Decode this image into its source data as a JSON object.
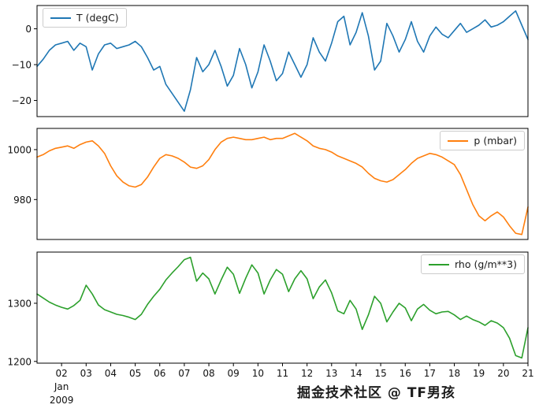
{
  "figure": {
    "background": "#ffffff",
    "watermark": "掘金技术社区 @ TF男孩"
  },
  "axis": {
    "xlim": [
      1,
      21
    ],
    "xtick_values": [
      2,
      3,
      4,
      5,
      6,
      7,
      8,
      9,
      10,
      11,
      12,
      13,
      14,
      15,
      16,
      17,
      18,
      19,
      20,
      21
    ],
    "xtick_labels": [
      "02",
      "03",
      "04",
      "05",
      "06",
      "07",
      "08",
      "09",
      "10",
      "11",
      "12",
      "13",
      "14",
      "15",
      "16",
      "17",
      "18",
      "19",
      "20",
      "21"
    ],
    "x_first_label_lines": [
      "Jan",
      "2009"
    ],
    "tick_color": "#000000",
    "grid": "off"
  },
  "chart_data": [
    {
      "type": "line",
      "series_name": "T (degC)",
      "legend": "T (degC)",
      "color": "#1f77b4",
      "legend_pos": "upper-left",
      "ylim": [
        -24.5,
        6.5
      ],
      "ytick_values": [
        0,
        -10,
        -20
      ],
      "ytick_labels": [
        "0",
        "−10",
        "−20"
      ],
      "x_start": 1.0,
      "x_step": 0.25,
      "x_unit": "day of Jan 2009",
      "y": [
        -10.5,
        -8.5,
        -6,
        -4.5,
        -4,
        -3.5,
        -6,
        -4,
        -5,
        -11.5,
        -7,
        -4.5,
        -4,
        -5.5,
        -5,
        -4.5,
        -3.5,
        -5,
        -8,
        -11.5,
        -10.5,
        -15.5,
        -18,
        -20.5,
        -23,
        -17,
        -8,
        -12,
        -10,
        -6,
        -10.5,
        -16,
        -13,
        -5.5,
        -10,
        -16.5,
        -12,
        -4.5,
        -9,
        -14.5,
        -12.5,
        -6.5,
        -10,
        -13.5,
        -10,
        -2.5,
        -6.5,
        -9,
        -4,
        2,
        3.5,
        -4.5,
        -1,
        4.5,
        -2,
        -11.5,
        -9,
        1.5,
        -2,
        -6.5,
        -3,
        2,
        -3.5,
        -6.5,
        -2,
        0.5,
        -1.5,
        -2.5,
        -0.5,
        1.5,
        -1,
        0,
        1,
        2.5,
        0.5,
        1,
        2,
        3.5,
        5,
        1,
        -3
      ]
    },
    {
      "type": "line",
      "series_name": "p (mbar)",
      "legend": "p (mbar)",
      "color": "#ff7f0e",
      "legend_pos": "upper-right",
      "ylim": [
        964,
        1008.5
      ],
      "ytick_values": [
        1000,
        980
      ],
      "ytick_labels": [
        "1000",
        "980"
      ],
      "x_start": 1.0,
      "x_step": 0.25,
      "x_unit": "day of Jan 2009",
      "y": [
        997,
        998,
        999.5,
        1000.5,
        1001,
        1001.5,
        1000.5,
        1002,
        1003,
        1003.5,
        1001.5,
        998.5,
        993.5,
        989.5,
        987,
        985.5,
        985,
        986,
        989,
        993,
        996.5,
        998,
        997.5,
        996.5,
        995,
        993,
        992.5,
        993.5,
        996,
        1000,
        1003,
        1004.5,
        1005,
        1004.5,
        1004,
        1004,
        1004.5,
        1005,
        1004,
        1004.5,
        1004.5,
        1005.5,
        1006.5,
        1005,
        1003.5,
        1001.5,
        1000.5,
        1000,
        999,
        997.5,
        996.5,
        995.5,
        994.5,
        993,
        990.5,
        988.5,
        987.5,
        987,
        988,
        990,
        992,
        994.5,
        996.5,
        997.5,
        998.5,
        998,
        997,
        995.5,
        994,
        990,
        984,
        978,
        973.5,
        971.5,
        973.5,
        975,
        973,
        969.5,
        966.5,
        966,
        977
      ]
    },
    {
      "type": "line",
      "series_name": "rho (g/m**3)",
      "legend": "rho (g/m**3)",
      "color": "#2ca02c",
      "legend_pos": "upper-right",
      "ylim": [
        1197,
        1388
      ],
      "ytick_values": [
        1300,
        1200
      ],
      "ytick_labels": [
        "1300",
        "1200"
      ],
      "x_start": 1.0,
      "x_step": 0.25,
      "x_unit": "day of Jan 2009",
      "y": [
        1316,
        1309,
        1302,
        1297,
        1293,
        1290,
        1296,
        1305,
        1331,
        1316,
        1297,
        1289,
        1285,
        1281,
        1279,
        1276,
        1272,
        1281,
        1298,
        1312,
        1324,
        1340,
        1352,
        1363,
        1375,
        1379,
        1338,
        1352,
        1342,
        1316,
        1340,
        1362,
        1350,
        1317,
        1343,
        1366,
        1352,
        1316,
        1340,
        1358,
        1350,
        1320,
        1342,
        1356,
        1342,
        1308,
        1328,
        1340,
        1318,
        1287,
        1282,
        1305,
        1290,
        1255,
        1280,
        1312,
        1300,
        1268,
        1285,
        1300,
        1292,
        1270,
        1290,
        1298,
        1288,
        1282,
        1285,
        1286,
        1280,
        1272,
        1278,
        1272,
        1268,
        1262,
        1270,
        1266,
        1258,
        1240,
        1210,
        1206,
        1258
      ]
    }
  ]
}
